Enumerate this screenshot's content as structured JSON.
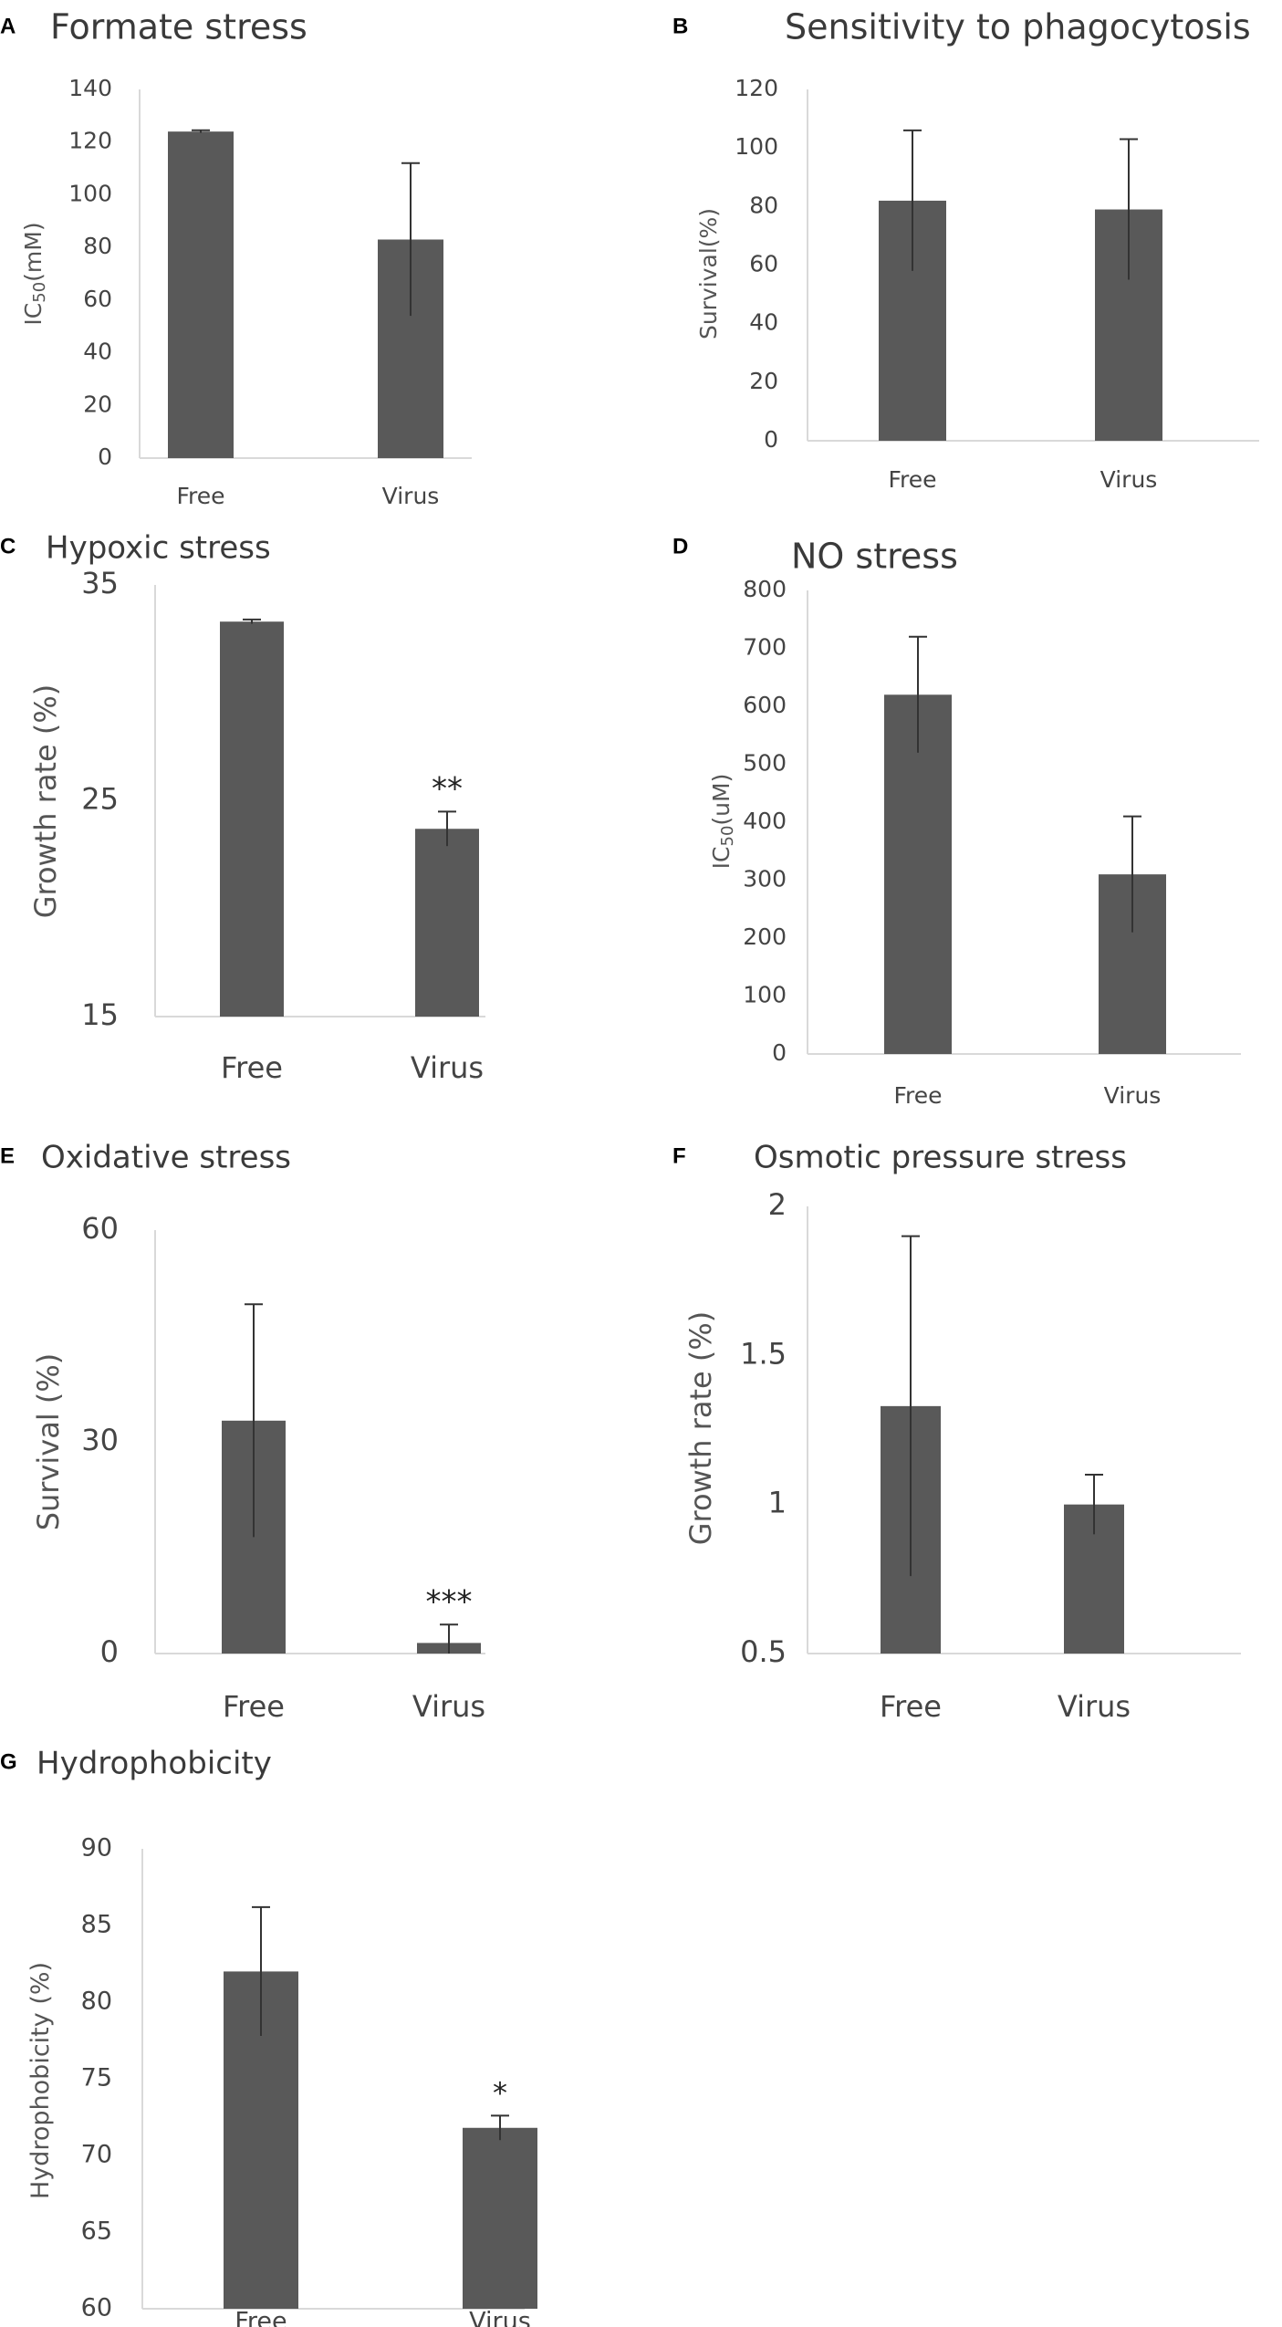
{
  "colors": {
    "bar": "#595959",
    "axis": "#d9d9d9",
    "error_bar": "#333333",
    "text": "#444444"
  },
  "chart_data": [
    {
      "panel": "A",
      "type": "bar",
      "title": "Formate stress",
      "ylabel": "IC",
      "ylabel_sub": "50",
      "ylabel_unit": "(mM)",
      "categories": [
        "Free",
        "Virus"
      ],
      "values": [
        124,
        83
      ],
      "errors": [
        0.5,
        29
      ],
      "ylim": [
        0,
        140
      ],
      "yticks": [
        "0",
        "20",
        "40",
        "60",
        "80",
        "100",
        "120",
        "140"
      ],
      "annotations": [
        "",
        ""
      ]
    },
    {
      "panel": "B",
      "type": "bar",
      "title": "Sensitivity to phagocytosis",
      "ylabel": "Survival(%)",
      "ylabel_sub": "",
      "ylabel_unit": "",
      "categories": [
        "Free",
        "Virus"
      ],
      "values": [
        82,
        79
      ],
      "errors": [
        24,
        24
      ],
      "ylim": [
        0,
        120
      ],
      "yticks": [
        "0",
        "20",
        "40",
        "60",
        "80",
        "100",
        "120"
      ],
      "annotations": [
        "",
        ""
      ]
    },
    {
      "panel": "C",
      "type": "bar",
      "title": "Hypoxic stress",
      "ylabel": "Growth rate (%)",
      "ylabel_sub": "",
      "ylabel_unit": "",
      "categories": [
        "Free",
        "Virus"
      ],
      "values": [
        33.3,
        23.7
      ],
      "errors": [
        0.1,
        0.8
      ],
      "ylim": [
        15,
        35
      ],
      "yticks": [
        "15",
        "25",
        "35"
      ],
      "annotations": [
        "",
        "**"
      ]
    },
    {
      "panel": "D",
      "type": "bar",
      "title": "NO stress",
      "ylabel": "IC",
      "ylabel_sub": "50",
      "ylabel_unit": "(uM)",
      "categories": [
        "Free",
        "Virus"
      ],
      "values": [
        620,
        310
      ],
      "errors": [
        100,
        100
      ],
      "ylim": [
        0,
        800
      ],
      "yticks": [
        "0",
        "100",
        "200",
        "300",
        "400",
        "500",
        "600",
        "700",
        "800"
      ],
      "annotations": [
        "",
        ""
      ]
    },
    {
      "panel": "E",
      "type": "bar",
      "title": "Oxidative stress",
      "ylabel": "Survival (%)",
      "ylabel_sub": "",
      "ylabel_unit": "",
      "categories": [
        "Free",
        "Virus"
      ],
      "values": [
        33,
        1.5
      ],
      "errors": [
        16.5,
        2.6
      ],
      "ylim": [
        0,
        60
      ],
      "yticks": [
        "0",
        "30",
        "60"
      ],
      "annotations": [
        "",
        "***"
      ]
    },
    {
      "panel": "F",
      "type": "bar",
      "title": "Osmotic pressure stress",
      "ylabel": "Growth rate (%)",
      "ylabel_sub": "",
      "ylabel_unit": "",
      "categories": [
        "Free",
        "Virus"
      ],
      "values": [
        1.33,
        1.0
      ],
      "errors": [
        0.57,
        0.1
      ],
      "ylim": [
        0.5,
        2
      ],
      "yticks": [
        "0.5",
        "1",
        "1.5",
        "2"
      ],
      "annotations": [
        "",
        ""
      ]
    },
    {
      "panel": "G",
      "type": "bar",
      "title": "Hydrophobicity",
      "ylabel": "Hydrophobicity (%)",
      "ylabel_sub": "",
      "ylabel_unit": "",
      "categories": [
        "Free",
        "Virus"
      ],
      "values": [
        82,
        71.8
      ],
      "errors": [
        4.2,
        0.8
      ],
      "ylim": [
        60,
        90
      ],
      "yticks": [
        "60",
        "65",
        "70",
        "75",
        "80",
        "85",
        "90"
      ],
      "annotations": [
        "",
        "*"
      ]
    }
  ]
}
